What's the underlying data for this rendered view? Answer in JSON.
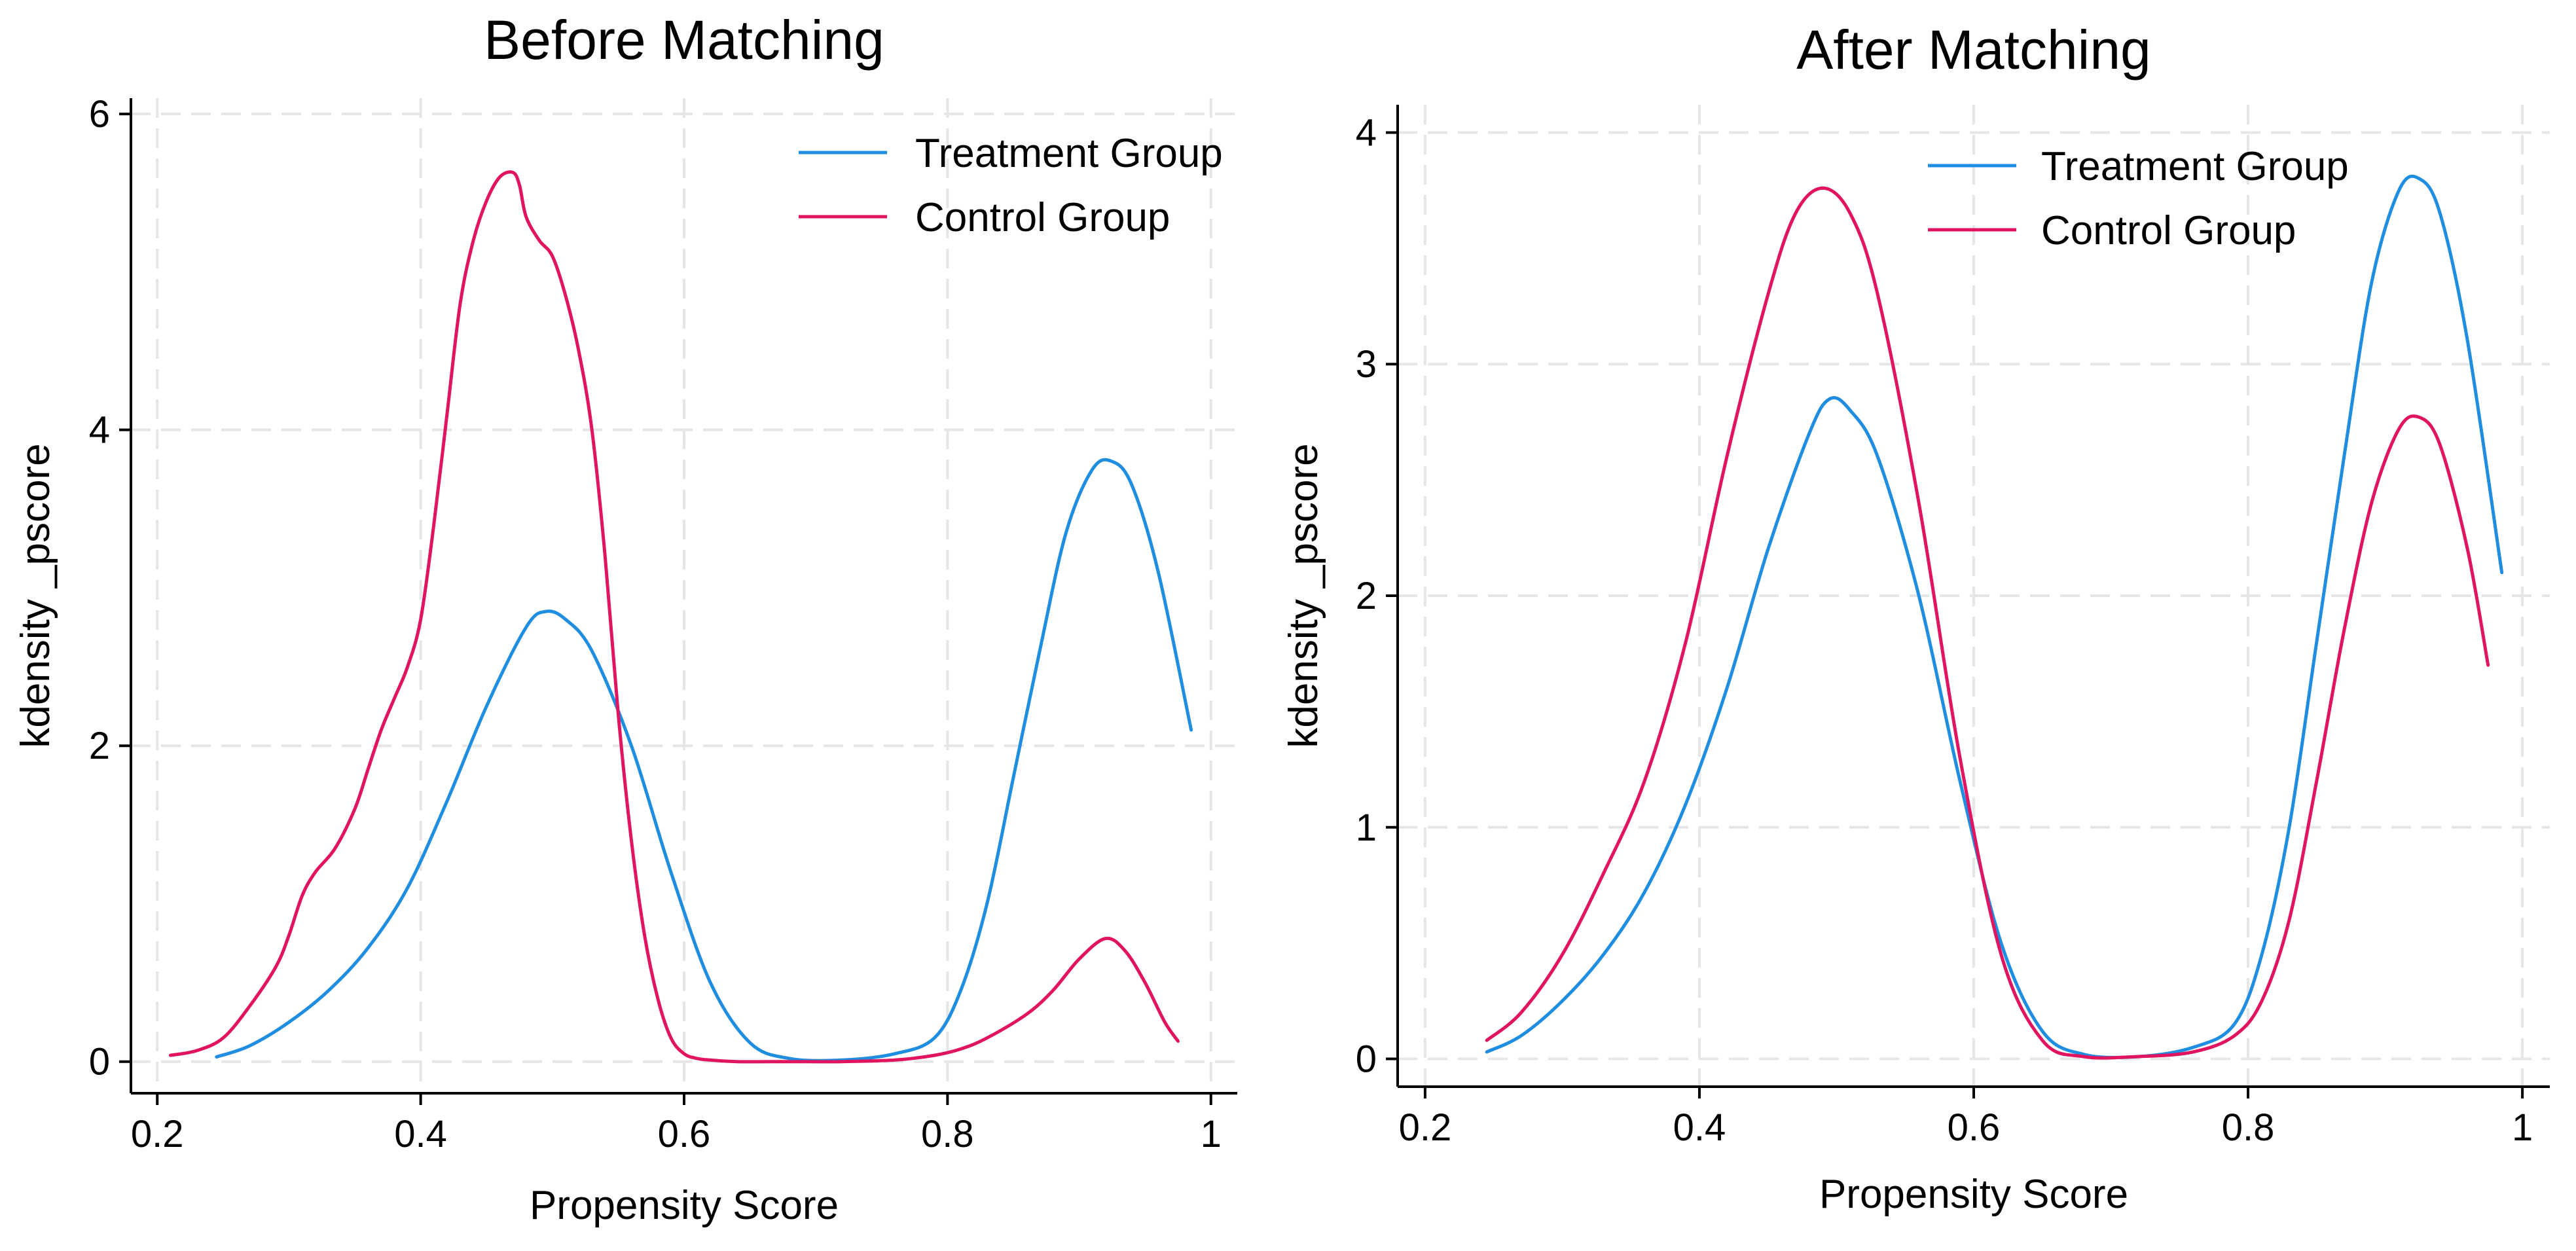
{
  "chart_data": [
    {
      "type": "line",
      "title": "Before Matching",
      "xlabel": "Propensity Score",
      "ylabel": "kdensity _pscore",
      "xlim": [
        0.18,
        1.02
      ],
      "ylim": [
        -0.2,
        6.1
      ],
      "xticks": [
        0.2,
        0.4,
        0.6,
        0.8,
        1
      ],
      "xtick_labels": [
        "0.2",
        "0.4",
        "0.6",
        "0.8",
        "1"
      ],
      "yticks": [
        0,
        2,
        4,
        6
      ],
      "ytick_labels": [
        "0",
        "2",
        "4",
        "6"
      ],
      "grid": true,
      "legend_position": "top-right",
      "series": [
        {
          "name": "Treatment Group",
          "color": "#1f8de0",
          "x": [
            0.245,
            0.27,
            0.3,
            0.33,
            0.36,
            0.39,
            0.42,
            0.45,
            0.48,
            0.495,
            0.51,
            0.53,
            0.56,
            0.59,
            0.62,
            0.65,
            0.68,
            0.72,
            0.76,
            0.79,
            0.81,
            0.83,
            0.85,
            0.87,
            0.89,
            0.91,
            0.925,
            0.94,
            0.96,
            0.985
          ],
          "y": [
            0.03,
            0.1,
            0.25,
            0.45,
            0.72,
            1.1,
            1.65,
            2.25,
            2.75,
            2.85,
            2.8,
            2.6,
            2.0,
            1.2,
            0.5,
            0.12,
            0.02,
            0.01,
            0.05,
            0.15,
            0.45,
            1.0,
            1.8,
            2.6,
            3.35,
            3.75,
            3.8,
            3.65,
            3.1,
            2.1
          ]
        },
        {
          "name": "Control Group",
          "color": "#e0145f",
          "x": [
            0.21,
            0.23,
            0.25,
            0.27,
            0.29,
            0.3,
            0.31,
            0.32,
            0.335,
            0.35,
            0.36,
            0.37,
            0.38,
            0.39,
            0.4,
            0.41,
            0.42,
            0.43,
            0.44,
            0.45,
            0.46,
            0.47,
            0.475,
            0.48,
            0.49,
            0.5,
            0.51,
            0.52,
            0.53,
            0.54,
            0.55,
            0.56,
            0.57,
            0.58,
            0.59,
            0.6,
            0.61,
            0.62,
            0.64,
            0.68,
            0.72,
            0.76,
            0.79,
            0.81,
            0.83,
            0.86,
            0.88,
            0.9,
            0.92,
            0.935,
            0.95,
            0.965,
            0.975
          ],
          "y": [
            0.04,
            0.07,
            0.15,
            0.35,
            0.6,
            0.8,
            1.05,
            1.2,
            1.35,
            1.6,
            1.85,
            2.1,
            2.3,
            2.5,
            2.8,
            3.4,
            4.1,
            4.8,
            5.2,
            5.45,
            5.6,
            5.63,
            5.55,
            5.35,
            5.2,
            5.1,
            4.85,
            4.5,
            4.0,
            3.2,
            2.2,
            1.4,
            0.8,
            0.4,
            0.15,
            0.05,
            0.02,
            0.01,
            0.0,
            0.0,
            0.0,
            0.01,
            0.04,
            0.08,
            0.15,
            0.3,
            0.45,
            0.65,
            0.78,
            0.7,
            0.5,
            0.25,
            0.13
          ]
        }
      ]
    },
    {
      "type": "line",
      "title": "After Matching",
      "xlabel": "Propensity Score",
      "ylabel": "kdensity _pscore",
      "xlim": [
        0.18,
        1.02
      ],
      "ylim": [
        -0.12,
        4.12
      ],
      "xticks": [
        0.2,
        0.4,
        0.6,
        0.8,
        1
      ],
      "xtick_labels": [
        "0.2",
        "0.4",
        "0.6",
        "0.8",
        "1"
      ],
      "yticks": [
        0,
        1,
        2,
        3,
        4
      ],
      "ytick_labels": [
        "0",
        "1",
        "2",
        "3",
        "4"
      ],
      "grid": true,
      "legend_position": "top-right",
      "series": [
        {
          "name": "Treatment Group",
          "color": "#1f8de0",
          "x": [
            0.245,
            0.27,
            0.3,
            0.33,
            0.36,
            0.39,
            0.42,
            0.45,
            0.48,
            0.495,
            0.51,
            0.53,
            0.56,
            0.59,
            0.62,
            0.65,
            0.68,
            0.72,
            0.76,
            0.79,
            0.81,
            0.83,
            0.85,
            0.87,
            0.89,
            0.91,
            0.925,
            0.94,
            0.96,
            0.985
          ],
          "y": [
            0.03,
            0.1,
            0.25,
            0.45,
            0.72,
            1.1,
            1.6,
            2.2,
            2.7,
            2.85,
            2.8,
            2.6,
            2.0,
            1.2,
            0.5,
            0.12,
            0.02,
            0.01,
            0.05,
            0.15,
            0.45,
            1.0,
            1.8,
            2.6,
            3.35,
            3.75,
            3.8,
            3.65,
            3.1,
            2.1
          ]
        },
        {
          "name": "Control Group",
          "color": "#e0145f",
          "x": [
            0.245,
            0.27,
            0.3,
            0.33,
            0.36,
            0.39,
            0.42,
            0.45,
            0.47,
            0.49,
            0.51,
            0.53,
            0.56,
            0.59,
            0.62,
            0.65,
            0.68,
            0.72,
            0.76,
            0.79,
            0.81,
            0.83,
            0.85,
            0.87,
            0.89,
            0.91,
            0.925,
            0.94,
            0.96,
            0.975
          ],
          "y": [
            0.08,
            0.2,
            0.45,
            0.8,
            1.2,
            1.8,
            2.6,
            3.3,
            3.65,
            3.76,
            3.65,
            3.3,
            2.4,
            1.3,
            0.45,
            0.08,
            0.01,
            0.01,
            0.03,
            0.1,
            0.25,
            0.6,
            1.2,
            1.85,
            2.4,
            2.72,
            2.77,
            2.65,
            2.2,
            1.7
          ]
        }
      ]
    }
  ]
}
